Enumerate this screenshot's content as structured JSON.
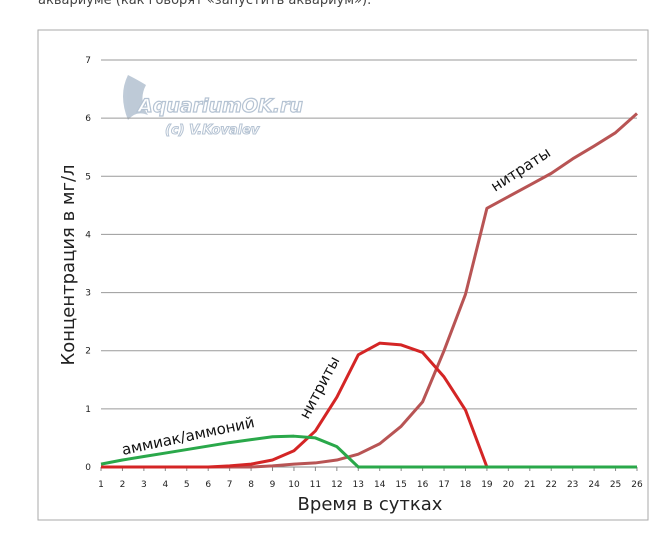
{
  "intro_text": "аквариуме (как говорят «запустить аквариум»).",
  "chart_data": {
    "type": "line",
    "watermark": {
      "site": "AquariumOK.ru",
      "author": "(c) V.Kovalev"
    },
    "xlabel": "Время в сутках",
    "ylabel": "Концентрация в мг/л",
    "x": [
      1,
      2,
      3,
      4,
      5,
      6,
      7,
      8,
      9,
      10,
      11,
      12,
      13,
      14,
      15,
      16,
      17,
      18,
      19,
      20,
      21,
      22,
      23,
      24,
      25,
      26
    ],
    "xlim": [
      1,
      26
    ],
    "xticks": [
      1,
      2,
      3,
      4,
      5,
      6,
      7,
      8,
      9,
      10,
      11,
      12,
      13,
      14,
      15,
      16,
      17,
      18,
      19,
      20,
      21,
      22,
      23,
      24,
      25,
      26
    ],
    "ylim": [
      0,
      7
    ],
    "yticks": [
      0,
      1,
      2,
      3,
      4,
      5,
      6,
      7
    ],
    "grid": true,
    "series": [
      {
        "name": "аммиак/аммоний",
        "color": "#2aa84a",
        "values": [
          0.05,
          0.12,
          0.18,
          0.24,
          0.3,
          0.36,
          0.42,
          0.47,
          0.52,
          0.53,
          0.5,
          0.35,
          0,
          0,
          0,
          0,
          0,
          0,
          0,
          0,
          0,
          0,
          0,
          0,
          0,
          0
        ]
      },
      {
        "name": "нитриты",
        "color": "#d42525",
        "values": [
          0,
          0,
          0,
          0,
          0,
          0,
          0.02,
          0.05,
          0.12,
          0.28,
          0.62,
          1.2,
          1.93,
          2.13,
          2.1,
          1.97,
          1.55,
          0.98,
          0,
          0,
          0,
          0,
          0,
          0,
          0,
          0
        ]
      },
      {
        "name": "нитраты",
        "color": "#b85454",
        "values": [
          0,
          0,
          0,
          0,
          0,
          0,
          0,
          0,
          0.02,
          0.05,
          0.07,
          0.12,
          0.22,
          0.4,
          0.7,
          1.12,
          2.0,
          2.97,
          4.45,
          4.65,
          4.85,
          5.05,
          5.3,
          5.52,
          5.75,
          6.08
        ]
      }
    ]
  }
}
